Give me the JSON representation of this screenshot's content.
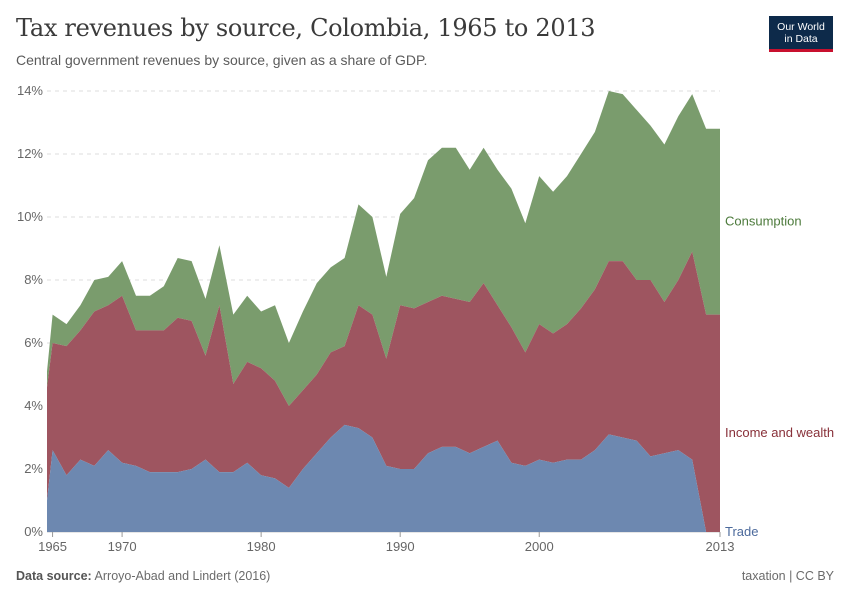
{
  "header": {
    "title": "Tax revenues by source, Colombia, 1965 to 2013",
    "subtitle": "Central government revenues by source, given as a share of GDP."
  },
  "logo": {
    "line1": "Our World",
    "line2": "in Data"
  },
  "footer": {
    "source_label": "Data source:",
    "source_text": "Arroyo-Abad and Lindert (2016)",
    "right_text": "taxation | CC BY"
  },
  "colors": {
    "trade": "#6d88b0",
    "income": "#9e5560",
    "consumption": "#7a9c6d",
    "trade_label": "#4c6a9c",
    "income_label": "#883039",
    "consumption_label": "#4c7a3b"
  },
  "chart_data": {
    "type": "area",
    "stacked": true,
    "title": "Tax revenues by source, Colombia, 1965 to 2013",
    "xlabel": "",
    "ylabel": "",
    "xlim": [
      1965,
      2013
    ],
    "ylim": [
      0,
      14
    ],
    "y_ticks": [
      0,
      2,
      4,
      6,
      8,
      10,
      12,
      14
    ],
    "y_tick_labels": [
      "0%",
      "2%",
      "4%",
      "6%",
      "8%",
      "10%",
      "12%",
      "14%"
    ],
    "x_ticks": [
      1965,
      1970,
      1980,
      1990,
      2000,
      2013
    ],
    "x_tick_labels": [
      "1965",
      "1970",
      "1980",
      "1990",
      "2000",
      "2013"
    ],
    "grid": "horizontal-dashed",
    "x": [
      1965,
      1966,
      1967,
      1968,
      1969,
      1970,
      1971,
      1972,
      1973,
      1974,
      1975,
      1976,
      1977,
      1978,
      1979,
      1980,
      1981,
      1982,
      1983,
      1984,
      1985,
      1986,
      1987,
      1988,
      1989,
      1990,
      1991,
      1992,
      1993,
      1994,
      1995,
      1996,
      1997,
      1998,
      1999,
      2000,
      2001,
      2002,
      2003,
      2004,
      2005,
      2006,
      2007,
      2008,
      2009,
      2010,
      2011,
      2012,
      2013
    ],
    "series": [
      {
        "name": "Trade",
        "key": "trade",
        "values": [
          2.6,
          1.8,
          2.3,
          2.1,
          2.6,
          2.2,
          2.1,
          1.9,
          1.9,
          1.9,
          2.0,
          2.3,
          1.9,
          1.9,
          2.2,
          1.8,
          1.7,
          1.4,
          2.0,
          2.5,
          3.0,
          3.4,
          3.3,
          3.0,
          2.1,
          2.0,
          2.0,
          2.5,
          2.7,
          2.7,
          2.5,
          2.7,
          2.9,
          2.2,
          2.1,
          2.3,
          2.2,
          2.3,
          2.3,
          2.6,
          3.1,
          3.0,
          2.9,
          2.4,
          2.5,
          2.6,
          2.3,
          0.0,
          0.0
        ]
      },
      {
        "name": "Income and wealth",
        "key": "income",
        "values": [
          6.0,
          5.9,
          6.4,
          7.0,
          7.2,
          7.5,
          6.4,
          6.4,
          6.4,
          6.8,
          6.7,
          5.6,
          7.2,
          4.7,
          5.4,
          5.2,
          4.8,
          4.0,
          4.5,
          5.0,
          5.7,
          5.9,
          7.2,
          6.9,
          5.5,
          7.2,
          7.1,
          7.3,
          7.5,
          7.4,
          7.3,
          7.9,
          7.2,
          6.5,
          5.7,
          6.6,
          6.3,
          6.6,
          7.1,
          7.7,
          8.6,
          8.6,
          8.0,
          8.0,
          7.3,
          8.0,
          8.9,
          6.9,
          6.9
        ]
      },
      {
        "name": "Consumption",
        "key": "consumption",
        "values": [
          6.9,
          6.6,
          7.2,
          8.0,
          8.1,
          8.6,
          7.5,
          7.5,
          7.8,
          8.7,
          8.6,
          7.4,
          9.1,
          6.9,
          7.5,
          7.0,
          7.2,
          6.0,
          7.0,
          7.9,
          8.4,
          8.7,
          10.4,
          10.0,
          8.1,
          10.1,
          10.6,
          11.8,
          12.2,
          12.2,
          11.5,
          12.2,
          11.5,
          10.9,
          9.8,
          11.3,
          10.8,
          11.3,
          12.0,
          12.7,
          14.0,
          13.9,
          13.4,
          12.9,
          12.3,
          13.2,
          13.9,
          12.8,
          12.8
        ]
      }
    ],
    "series_cumulative_note": "values are cumulative stack tops (Trade top, Trade+Income top, total) as read from the chart",
    "first_point": {
      "x": 1964.6,
      "trade": 1.0,
      "income": 4.6,
      "consumption": 5.1
    }
  }
}
